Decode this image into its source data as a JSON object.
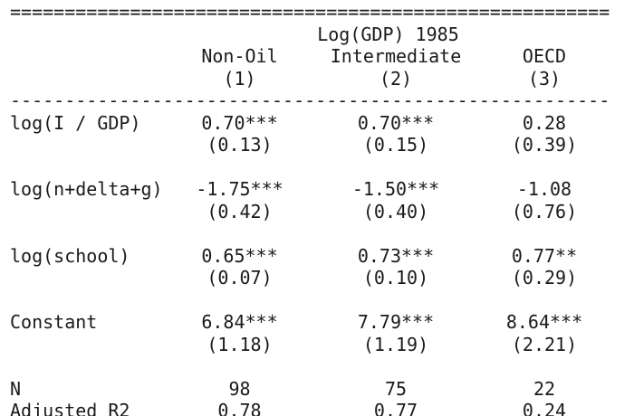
{
  "table": {
    "top_rule": "=======================================================",
    "mid_rule": "-------------------------------------------------------",
    "dep_var_header": "Log(GDP) 1985",
    "columns": [
      {
        "name": "Non-Oil",
        "number": "(1)"
      },
      {
        "name": "Intermediate",
        "number": "(2)"
      },
      {
        "name": "OECD",
        "number": "(3)"
      }
    ],
    "coefficients": [
      {
        "label": "log(I / GDP)",
        "estimates": [
          "0.70***",
          "0.70***",
          "0.28"
        ],
        "std_errors": [
          "(0.13)",
          "(0.15)",
          "(0.39)"
        ]
      },
      {
        "label": "log(n+delta+g)",
        "estimates": [
          "-1.75***",
          "-1.50***",
          "-1.08"
        ],
        "std_errors": [
          "(0.42)",
          "(0.40)",
          "(0.76)"
        ]
      },
      {
        "label": "log(school)",
        "estimates": [
          "0.65***",
          "0.73***",
          "0.77**"
        ],
        "std_errors": [
          "(0.07)",
          "(0.10)",
          "(0.29)"
        ]
      },
      {
        "label": "Constant",
        "estimates": [
          "6.84***",
          "7.79***",
          "8.64***"
        ],
        "std_errors": [
          "(1.18)",
          "(1.19)",
          "(2.21)"
        ]
      }
    ],
    "stats": [
      {
        "label": "N",
        "values": [
          "98",
          "75",
          "22"
        ]
      },
      {
        "label": "Adjusted R2",
        "values": [
          "0.78",
          "0.77",
          "0.24"
        ]
      }
    ],
    "text_color": "#1a1a1a",
    "background_color": "#ffffff"
  }
}
